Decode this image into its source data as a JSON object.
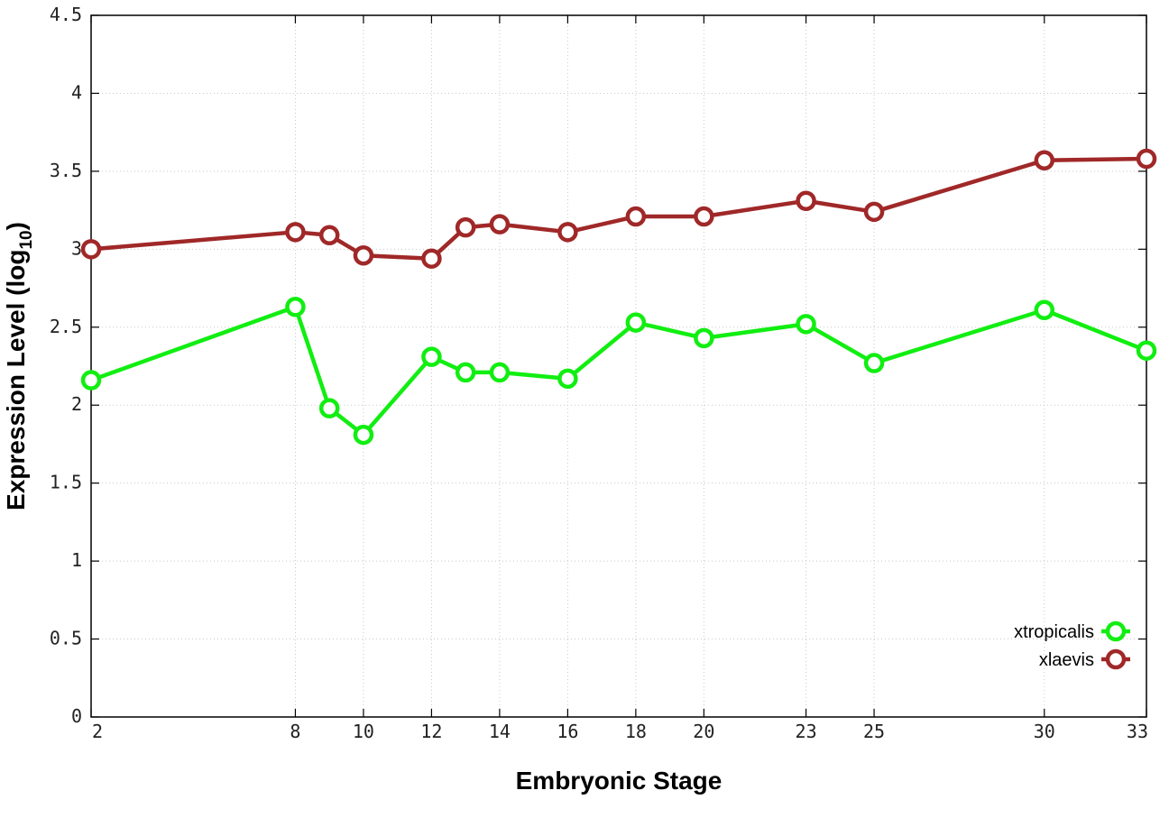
{
  "chart_data": {
    "type": "line",
    "xlabel": "Embryonic Stage",
    "ylabel_main": "Expression Level (log",
    "ylabel_sub": "10",
    "ylabel_close": ")",
    "x": [
      2,
      8,
      9,
      10,
      12,
      13,
      14,
      16,
      18,
      20,
      23,
      25,
      30,
      33
    ],
    "x_ticks": [
      2,
      8,
      10,
      12,
      14,
      16,
      18,
      20,
      23,
      25,
      30,
      33
    ],
    "xlim": [
      2,
      33
    ],
    "ylim": [
      0,
      4.5
    ],
    "y_ticks": [
      "0",
      "0.5",
      "1",
      "1.5",
      "2",
      "2.5",
      "3",
      "3.5",
      "4",
      "4.5"
    ],
    "grid": true,
    "legend_position": "bottom-right",
    "series": [
      {
        "name": "xtropicalis",
        "color": "#11ee11",
        "values": [
          2.16,
          2.63,
          1.98,
          1.81,
          2.31,
          2.21,
          2.21,
          2.17,
          2.53,
          2.43,
          2.52,
          2.27,
          2.61,
          2.35
        ]
      },
      {
        "name": "xlaevis",
        "color": "#a02828",
        "values": [
          3.0,
          3.11,
          3.09,
          2.96,
          2.94,
          3.14,
          3.16,
          3.11,
          3.21,
          3.21,
          3.31,
          3.24,
          3.57,
          3.58
        ]
      }
    ]
  }
}
